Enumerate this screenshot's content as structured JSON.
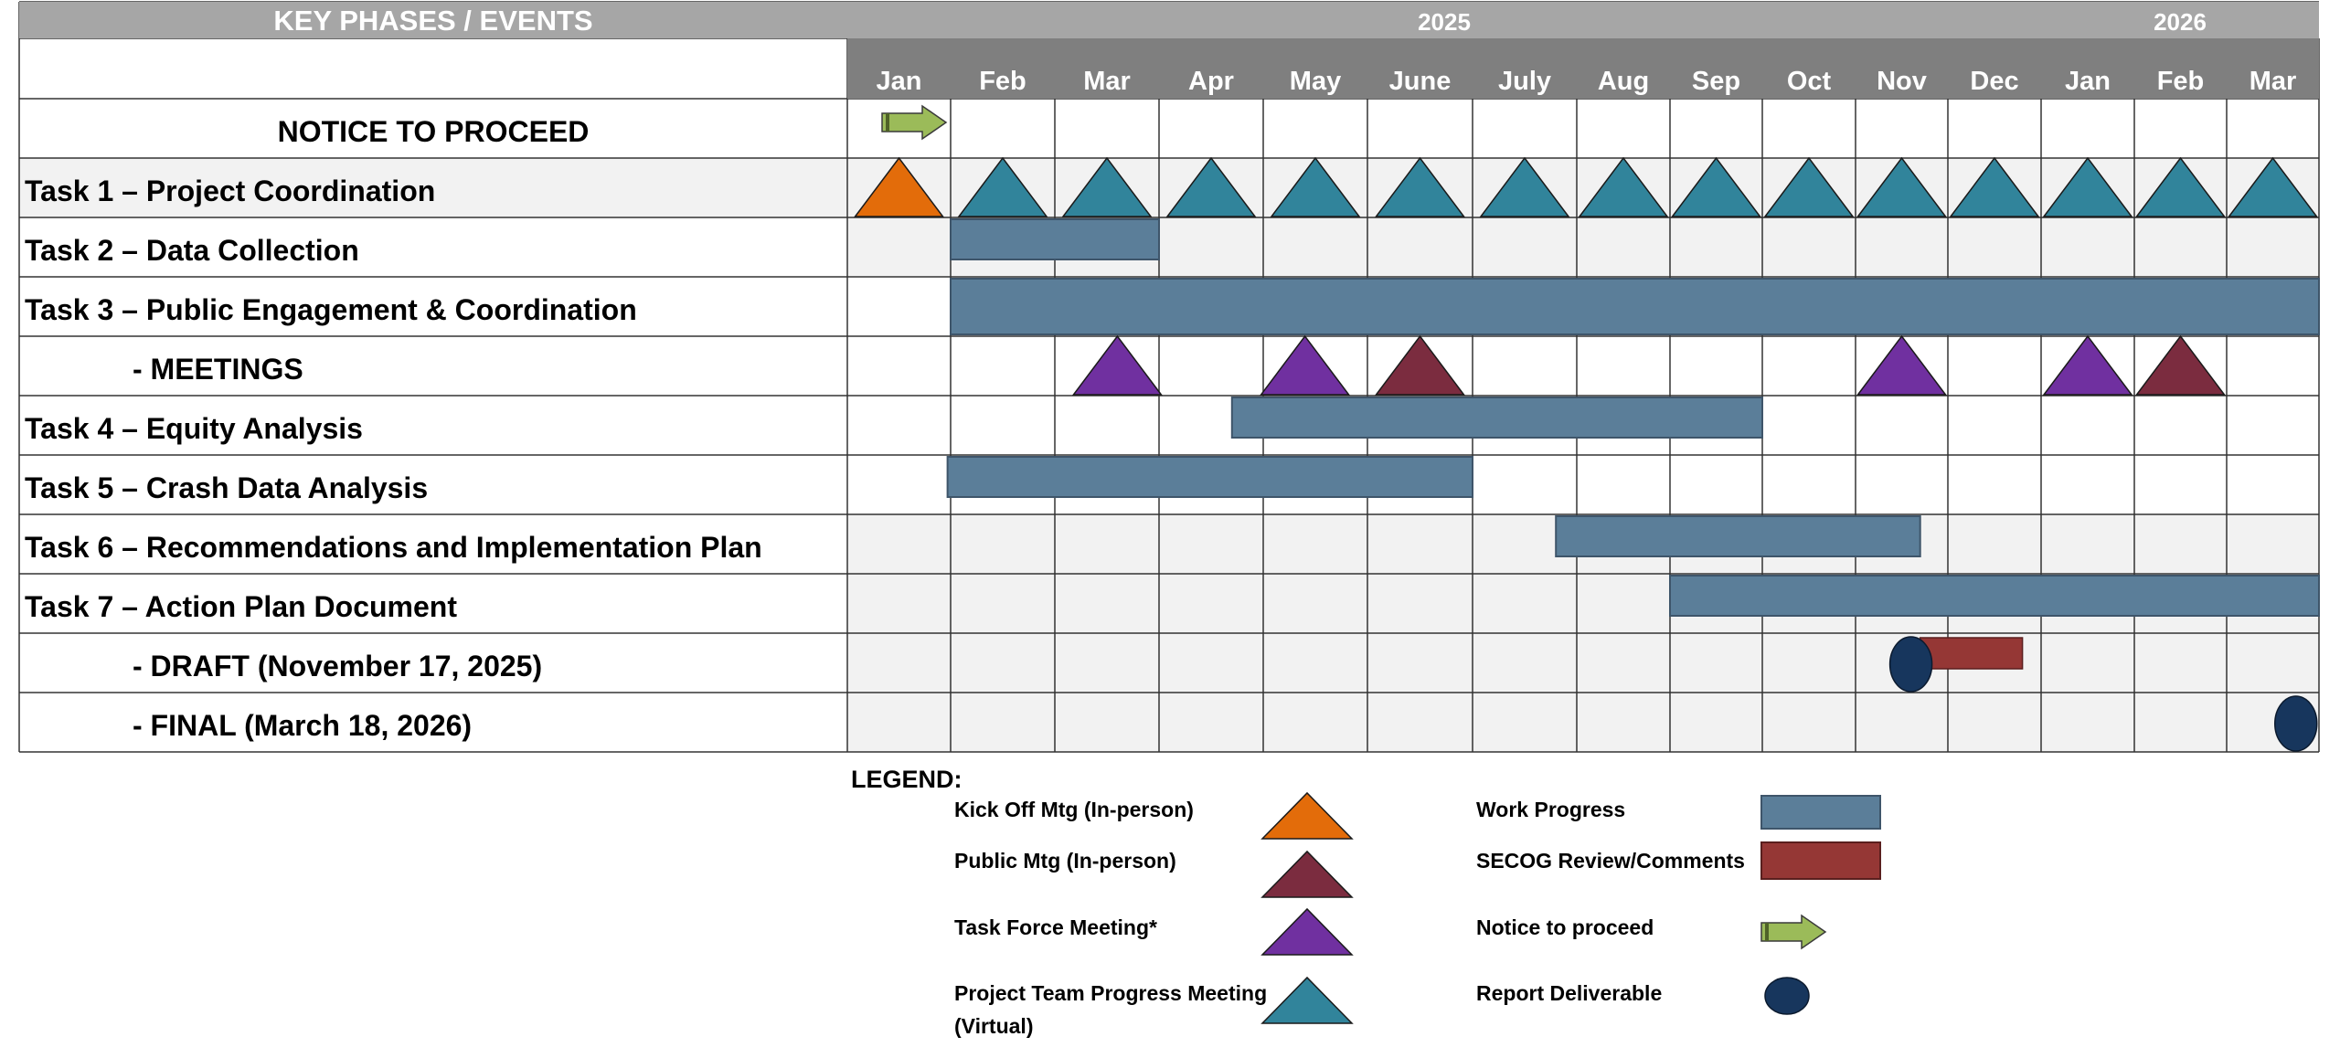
{
  "header": {
    "phases_label": "KEY PHASES / EVENTS",
    "year_2025": "2025",
    "year_2026": "2026"
  },
  "months": [
    "Jan",
    "Feb",
    "Mar",
    "Apr",
    "May",
    "June",
    "July",
    "Aug",
    "Sep",
    "Oct",
    "Nov",
    "Dec",
    "Jan",
    "Feb",
    "Mar"
  ],
  "rows": [
    {
      "label": "NOTICE TO PROCEED",
      "style": "centered"
    },
    {
      "label": "Task 1 – Project Coordination",
      "style": "task"
    },
    {
      "label": "Task 2 – Data Collection",
      "style": "task"
    },
    {
      "label": "Task 3 – Public Engagement & Coordination",
      "style": "task"
    },
    {
      "label": "- MEETINGS",
      "style": "sub"
    },
    {
      "label": "Task 4 – Equity Analysis",
      "style": "task"
    },
    {
      "label": "Task 5 – Crash Data Analysis",
      "style": "task"
    },
    {
      "label": "Task 6 – Recommendations and Implementation Plan",
      "style": "task"
    },
    {
      "label": "Task 7 – Action Plan Document",
      "style": "task"
    },
    {
      "label": "- DRAFT (November 17, 2025)",
      "style": "sub"
    },
    {
      "label": "- FINAL (March 18, 2026)",
      "style": "sub"
    }
  ],
  "schedule": {
    "notice_arrow": {
      "row": 0,
      "month": 0
    },
    "coordination_meetings": [
      {
        "row": 1,
        "month": 0,
        "type": "kickoff"
      },
      {
        "row": 1,
        "month": 1,
        "type": "team"
      },
      {
        "row": 1,
        "month": 2,
        "type": "team"
      },
      {
        "row": 1,
        "month": 3,
        "type": "team"
      },
      {
        "row": 1,
        "month": 4,
        "type": "team"
      },
      {
        "row": 1,
        "month": 5,
        "type": "team"
      },
      {
        "row": 1,
        "month": 6,
        "type": "team"
      },
      {
        "row": 1,
        "month": 7,
        "type": "team"
      },
      {
        "row": 1,
        "month": 8,
        "type": "team"
      },
      {
        "row": 1,
        "month": 9,
        "type": "team"
      },
      {
        "row": 1,
        "month": 10,
        "type": "team"
      },
      {
        "row": 1,
        "month": 11,
        "type": "team"
      },
      {
        "row": 1,
        "month": 12,
        "type": "team"
      },
      {
        "row": 1,
        "month": 13,
        "type": "team"
      },
      {
        "row": 1,
        "month": 14,
        "type": "team"
      }
    ],
    "meetings": [
      {
        "row": 4,
        "month": 2.6,
        "type": "taskforce"
      },
      {
        "row": 4,
        "month": 4.4,
        "type": "taskforce"
      },
      {
        "row": 4,
        "month": 5.5,
        "type": "public"
      },
      {
        "row": 4,
        "month": 10.5,
        "type": "taskforce"
      },
      {
        "row": 4,
        "month": 12.5,
        "type": "taskforce"
      },
      {
        "row": 4,
        "month": 13.5,
        "type": "public"
      }
    ],
    "work_bars": [
      {
        "row": 2,
        "start": 1.0,
        "end": 3.0
      },
      {
        "row": 3,
        "start": 1.0,
        "end": 15.0
      },
      {
        "row": 5,
        "start": 3.7,
        "end": 9.0
      },
      {
        "row": 6,
        "start": 0.97,
        "end": 6.0
      },
      {
        "row": 7,
        "start": 6.8,
        "end": 10.7
      },
      {
        "row": 8,
        "start": 8.0,
        "end": 15.0
      }
    ],
    "review_bars": [
      {
        "row": 9,
        "start": 10.7,
        "end": 11.8
      }
    ],
    "deliverables": [
      {
        "row": 9,
        "month": 10.6
      },
      {
        "row": 10,
        "month": 14.75
      }
    ]
  },
  "legend": {
    "title": "LEGEND:",
    "items": [
      {
        "label": "Kick Off  Mtg (In-person)",
        "symbol": "kickoff"
      },
      {
        "label": "Public  Mtg (In-person)",
        "symbol": "public"
      },
      {
        "label": "Task Force Meeting*",
        "symbol": "taskforce"
      },
      {
        "label": "Project Team Progress Meeting",
        "label2": "(Virtual)",
        "symbol": "team"
      },
      {
        "label": "Work Progress",
        "symbol": "work"
      },
      {
        "label": "SECOG Review/Comments",
        "symbol": "review"
      },
      {
        "label": "Notice to proceed",
        "symbol": "arrow"
      },
      {
        "label": "Report Deliverable",
        "symbol": "deliverable"
      }
    ]
  },
  "colors": {
    "header_gray": "#a6a6a6",
    "month_gray": "#7f7f7f",
    "row_shade": "#f2f2f2",
    "grid": "#333333",
    "kickoff": "#e36c0a",
    "team": "#31849b",
    "taskforce": "#7030a0",
    "public": "#7b2c3f",
    "work": "#5b7e99",
    "review": "#953735",
    "arrow": "#9bbb59",
    "deliverable": "#17365d"
  }
}
